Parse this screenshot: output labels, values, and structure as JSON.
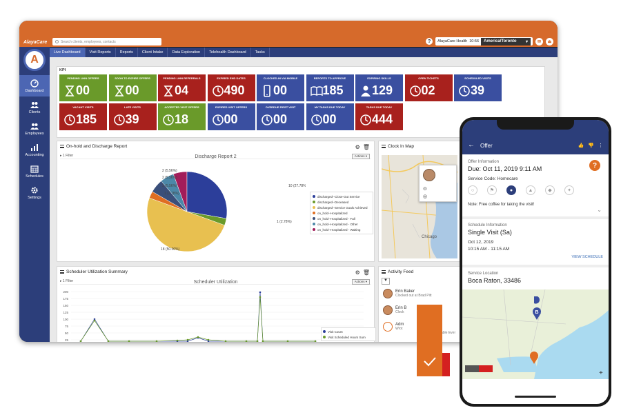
{
  "topbar": {
    "logo": "AlayaCare",
    "search_placeholder": "Search clients, employees, contacts",
    "agency": "AlayaCare Health",
    "time": "10:56",
    "timezone": "America/Toronto",
    "help": "?"
  },
  "nav_tabs": [
    "Live Dashboard",
    "Visit Reports",
    "Reports",
    "Client Intake",
    "Data Exploration",
    "Telehealth Dashboard",
    "Tasks"
  ],
  "sidebar": {
    "logo_letter": "A",
    "items": [
      {
        "label": "Dashboard",
        "icon": "dashboard-icon"
      },
      {
        "label": "Clients",
        "icon": "clients-icon"
      },
      {
        "label": "Employees",
        "icon": "employees-icon"
      },
      {
        "label": "Accounting",
        "icon": "accounting-icon"
      },
      {
        "label": "Schedules",
        "icon": "calendar-icon"
      },
      {
        "label": "Settings",
        "icon": "gear-icon"
      }
    ]
  },
  "kpi": {
    "title": "KPI",
    "row1": [
      {
        "label": "Pending LHIN Offers",
        "value": "00",
        "color": "#6a9a2a",
        "icon": "hourglass-icon"
      },
      {
        "label": "Soon to Expire Offers",
        "value": "00",
        "color": "#6a9a2a",
        "icon": "hourglass-icon"
      },
      {
        "label": "Pending LHIN Referrals",
        "value": "04",
        "color": "#a8211d",
        "icon": "hourglass-icon"
      },
      {
        "label": "Expired End Dates",
        "value": "490",
        "color": "#a8211d",
        "icon": "clock-icon"
      },
      {
        "label": "Clocked-In via Mobile",
        "value": "00",
        "color": "#3a4fa0",
        "icon": "phone-icon"
      },
      {
        "label": "Reports to Approve",
        "value": "185",
        "color": "#3a4fa0",
        "icon": "book-icon"
      },
      {
        "label": "Expiring Skills",
        "value": "129",
        "color": "#3a4fa0",
        "icon": "user-icon"
      },
      {
        "label": "Open Tickets",
        "value": "02",
        "color": "#a8211d",
        "icon": "clock-icon"
      },
      {
        "label": "Scheduled Visits",
        "value": "39",
        "color": "#3a4fa0",
        "icon": "clock-icon"
      }
    ],
    "row2": [
      {
        "label": "Vacant Visits",
        "value": "185",
        "color": "#a8211d",
        "icon": "clock-icon"
      },
      {
        "label": "Late Visits",
        "value": "39",
        "color": "#a8211d",
        "icon": "clock-icon"
      },
      {
        "label": "Accepted Visit Offers",
        "value": "18",
        "color": "#6a9a2a",
        "icon": "clock-icon"
      },
      {
        "label": "Expired Visit Offers",
        "value": "00",
        "color": "#3a4fa0",
        "icon": "clock-icon"
      },
      {
        "label": "Overdue First Visit",
        "value": "00",
        "color": "#3a4fa0",
        "icon": "clock-icon"
      },
      {
        "label": "My Tasks Due Today",
        "value": "00",
        "color": "#3a4fa0",
        "icon": "clock-icon"
      },
      {
        "label": "Tasks Due Today",
        "value": "444",
        "color": "#a8211d",
        "icon": "clock-icon"
      }
    ]
  },
  "discharge_panel": {
    "title": "On-hold and Discharge Report",
    "filter": "1 Filter",
    "chart_title": "Discharge Report 2",
    "actions": "Actions"
  },
  "clock_panel": {
    "title": "Clock In Map",
    "city": "Chicago"
  },
  "scheduler_panel": {
    "title": "Scheduler Utilization Summary",
    "filter": "1 Filter",
    "chart_title": "Scheduler Utilization",
    "actions": "Actions"
  },
  "activity_panel": {
    "title": "Activity Feed",
    "items": [
      {
        "name": "Erin Baker",
        "sub": "Clocked out at Brad Pitt"
      },
      {
        "name": "Erin B",
        "sub": "Clock"
      },
      {
        "name": "Adm",
        "sub": "Wrot"
      }
    ],
    "partial_text": "able Ever"
  },
  "chart_data": [
    {
      "type": "pie",
      "title": "Discharge Report 2",
      "categories": [
        "discharged--Close-Out Service",
        "discharged--Deceased",
        "discharged--Service Goals Achieved",
        "on_hold--Hospitalized",
        "on_hold--Hospitalized - Fall",
        "on_hold--Hospitalized - Other",
        "on_hold--Hospitalized - Waiting"
      ],
      "values": [
        10,
        1,
        18,
        1,
        2,
        2,
        2
      ],
      "labels": [
        "10 (27.78%)",
        "1 (2.78%)",
        "18 (50.00%)",
        "1 (2.78%)",
        "2 (5.56%)",
        "2 (5.56%)",
        "2 (5.56%)"
      ],
      "colors": [
        "#2c3e9a",
        "#6a9a2a",
        "#e8c050",
        "#e06e22",
        "#3a4f7a",
        "#4c88a8",
        "#a21d5a"
      ],
      "legend": "right"
    },
    {
      "type": "line",
      "title": "Scheduler Utilization",
      "yticks": [
        "200",
        "175",
        "150",
        "125",
        "100",
        "75",
        "50",
        "25"
      ],
      "series": [
        {
          "name": "Visit Count",
          "color": "#2c3e9a"
        },
        {
          "name": "Visit Scheduled Hours Sum",
          "color": "#6a9a2a"
        }
      ],
      "legend": "bottom-right"
    }
  ],
  "phone": {
    "title": "Offer",
    "offer_label": "Offer Information",
    "due": "Due: Oct 11, 2019 9:11 AM",
    "service_code": "Service Code: Homecare",
    "note": "Note: Free coffee for taking the visit!",
    "schedule_label": "Schedule Information",
    "visit": "Single Visit (Sa)",
    "date": "Oct 12, 2019",
    "time": "10:15 AM - 11:15 AM",
    "view_schedule": "VIEW SCHEDULE",
    "location_label": "Service Location",
    "location": "Boca Raton, 33486",
    "map_marker": "B",
    "help": "?"
  }
}
